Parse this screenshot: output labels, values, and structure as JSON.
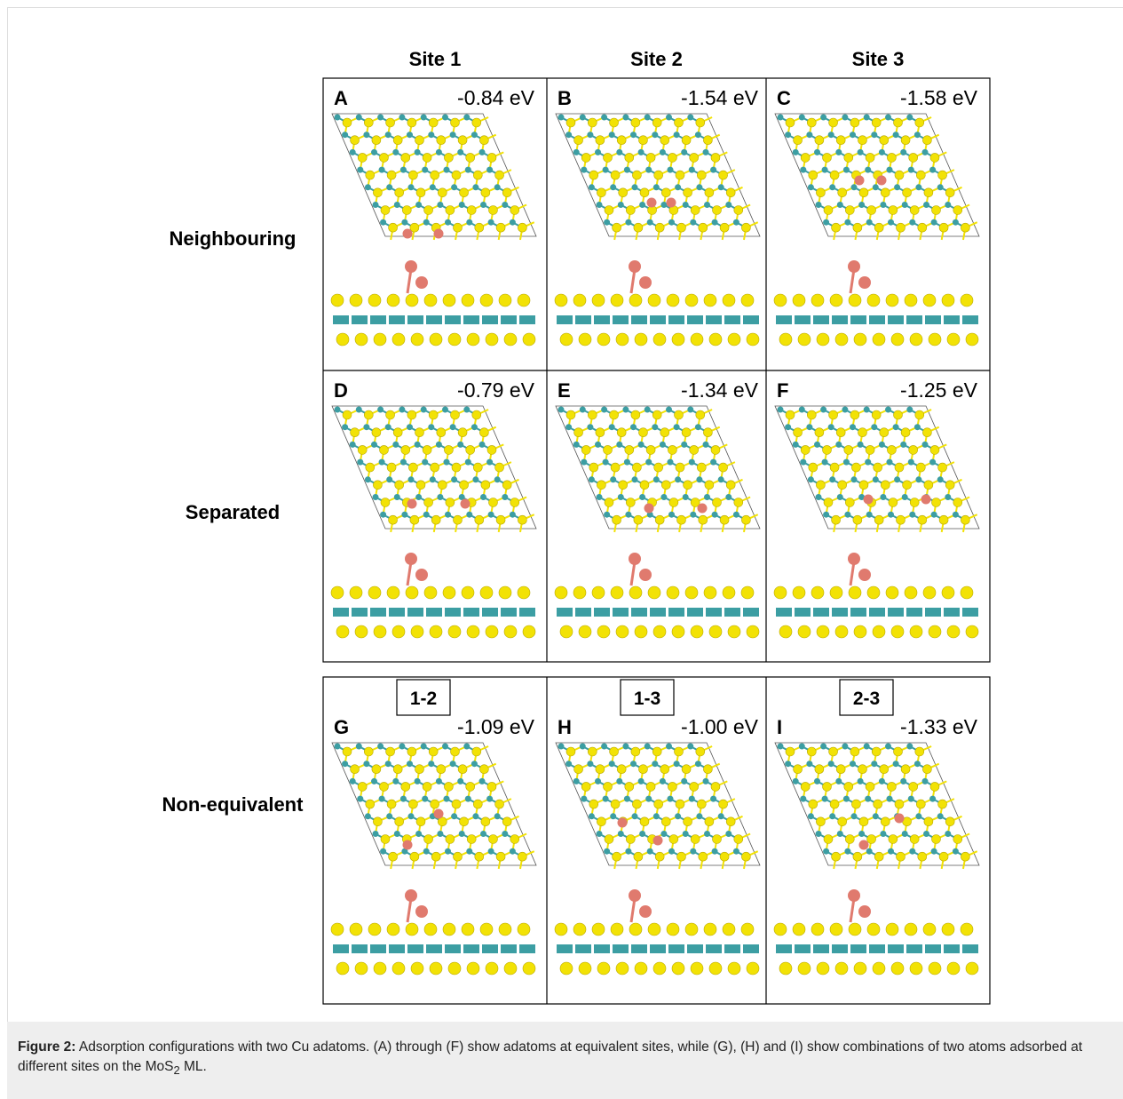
{
  "columns": [
    "Site 1",
    "Site 2",
    "Site 3"
  ],
  "rows": [
    "Neighbouring",
    "Separated",
    "Non-equivalent"
  ],
  "panels": [
    {
      "letter": "A",
      "energy": "-0.84 eV"
    },
    {
      "letter": "B",
      "energy": "-1.54 eV"
    },
    {
      "letter": "C",
      "energy": "-1.58 eV"
    },
    {
      "letter": "D",
      "energy": "-0.79 eV"
    },
    {
      "letter": "E",
      "energy": "-1.34 eV"
    },
    {
      "letter": "F",
      "energy": "-1.25 eV"
    },
    {
      "letter": "G",
      "combo": "1-2",
      "energy": "-1.09 eV"
    },
    {
      "letter": "H",
      "combo": "1-3",
      "energy": "-1.00 eV"
    },
    {
      "letter": "I",
      "combo": "2-3",
      "energy": "-1.33 eV"
    }
  ],
  "caption": {
    "label": "Figure 2:",
    "text": "Adsorption configurations with two Cu adatoms. (A) through (F) show adatoms at equivalent sites, while (G), (H) and (I) show combinations of two atoms adsorbed at different sites on the MoS",
    "subscript": "2",
    "tail": " ML."
  }
}
